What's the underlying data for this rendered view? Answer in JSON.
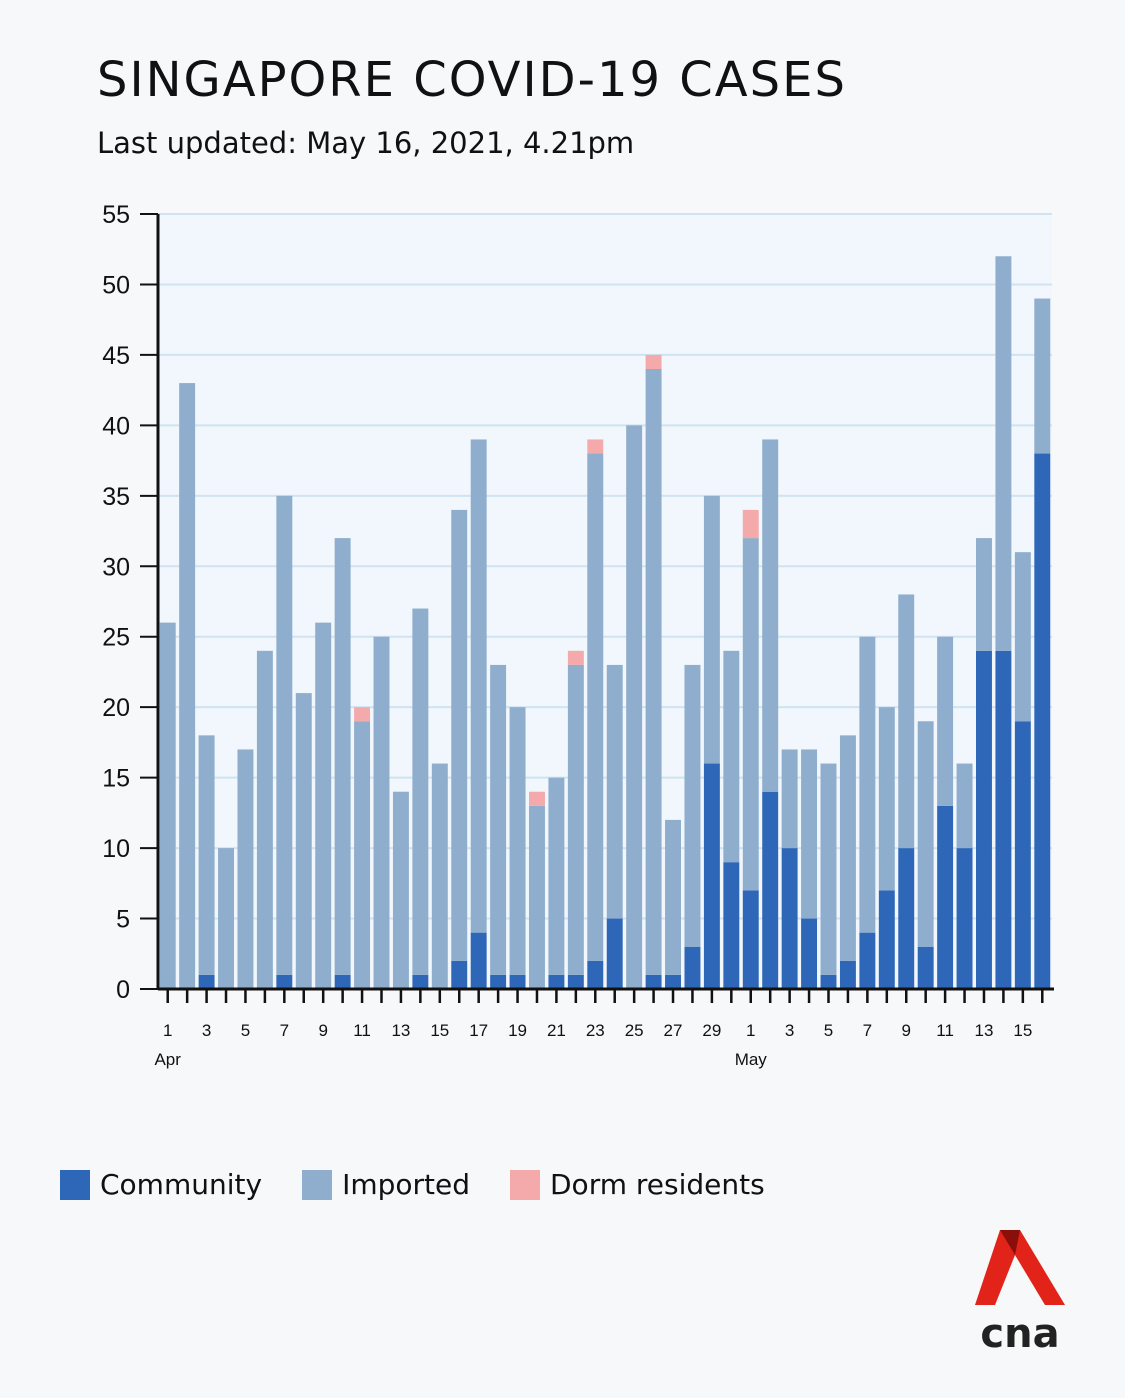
{
  "chart_data": {
    "type": "bar",
    "stacked": true,
    "title": "SINGAPORE COVID-19 CASES",
    "subtitle": "Last updated: May 16, 2021, 4.21pm",
    "xlabel": "",
    "ylabel": "",
    "ylim": [
      0,
      55
    ],
    "yticks": [
      0,
      5,
      10,
      15,
      20,
      25,
      30,
      35,
      40,
      45,
      50,
      55
    ],
    "categories": [
      "Apr 1",
      "Apr 2",
      "Apr 3",
      "Apr 4",
      "Apr 5",
      "Apr 6",
      "Apr 7",
      "Apr 8",
      "Apr 9",
      "Apr 10",
      "Apr 11",
      "Apr 12",
      "Apr 13",
      "Apr 14",
      "Apr 15",
      "Apr 16",
      "Apr 17",
      "Apr 18",
      "Apr 19",
      "Apr 20",
      "Apr 21",
      "Apr 22",
      "Apr 23",
      "Apr 24",
      "Apr 25",
      "Apr 26",
      "Apr 27",
      "Apr 28",
      "Apr 29",
      "Apr 30",
      "May 1",
      "May 2",
      "May 3",
      "May 4",
      "May 5",
      "May 6",
      "May 7",
      "May 8",
      "May 9",
      "May 10",
      "May 11",
      "May 12",
      "May 13",
      "May 14",
      "May 15",
      "May 16"
    ],
    "tick_labels": [
      "1",
      "",
      "3",
      "",
      "5",
      "",
      "7",
      "",
      "9",
      "",
      "11",
      "",
      "13",
      "",
      "15",
      "",
      "17",
      "",
      "19",
      "",
      "21",
      "",
      "23",
      "",
      "25",
      "",
      "27",
      "",
      "29",
      "",
      "1",
      "",
      "3",
      "",
      "5",
      "",
      "7",
      "",
      "9",
      "",
      "11",
      "",
      "13",
      "",
      "15",
      ""
    ],
    "month_labels": [
      {
        "index": 0,
        "label": "Apr"
      },
      {
        "index": 30,
        "label": "May"
      }
    ],
    "series": [
      {
        "name": "Community",
        "color": "#2f67b8",
        "values": [
          0,
          0,
          1,
          0,
          0,
          0,
          1,
          0,
          0,
          1,
          0,
          0,
          0,
          1,
          0,
          2,
          4,
          1,
          1,
          0,
          1,
          1,
          2,
          5,
          0,
          1,
          1,
          3,
          16,
          9,
          7,
          14,
          10,
          5,
          1,
          2,
          4,
          7,
          10,
          3,
          13,
          10,
          24,
          24,
          19,
          38
        ]
      },
      {
        "name": "Imported",
        "color": "#8fadcc",
        "values": [
          26,
          43,
          17,
          10,
          17,
          24,
          34,
          21,
          26,
          31,
          19,
          25,
          14,
          26,
          16,
          32,
          35,
          22,
          19,
          13,
          14,
          22,
          36,
          18,
          40,
          43,
          11,
          20,
          19,
          15,
          25,
          25,
          7,
          12,
          15,
          16,
          21,
          13,
          18,
          16,
          12,
          6,
          8,
          28,
          12,
          11
        ]
      },
      {
        "name": "Dorm residents",
        "color": "#f4a9aa",
        "values": [
          0,
          0,
          0,
          0,
          0,
          0,
          0,
          0,
          0,
          0,
          1,
          0,
          0,
          0,
          0,
          0,
          0,
          0,
          0,
          1,
          0,
          1,
          1,
          0,
          0,
          1,
          0,
          0,
          0,
          0,
          2,
          0,
          0,
          0,
          0,
          0,
          0,
          0,
          0,
          0,
          0,
          0,
          0,
          0,
          0,
          0
        ]
      }
    ]
  },
  "legend": {
    "community": "Community",
    "imported": "Imported",
    "dorm": "Dorm residents"
  },
  "logo": {
    "text": "cna"
  },
  "colors": {
    "community": "#2f67b8",
    "imported": "#8fadcc",
    "dorm": "#f4a9aa",
    "plot_bg": "#f1f7fc",
    "grid": "#cfe3f2",
    "logo_red": "#e2231a"
  }
}
